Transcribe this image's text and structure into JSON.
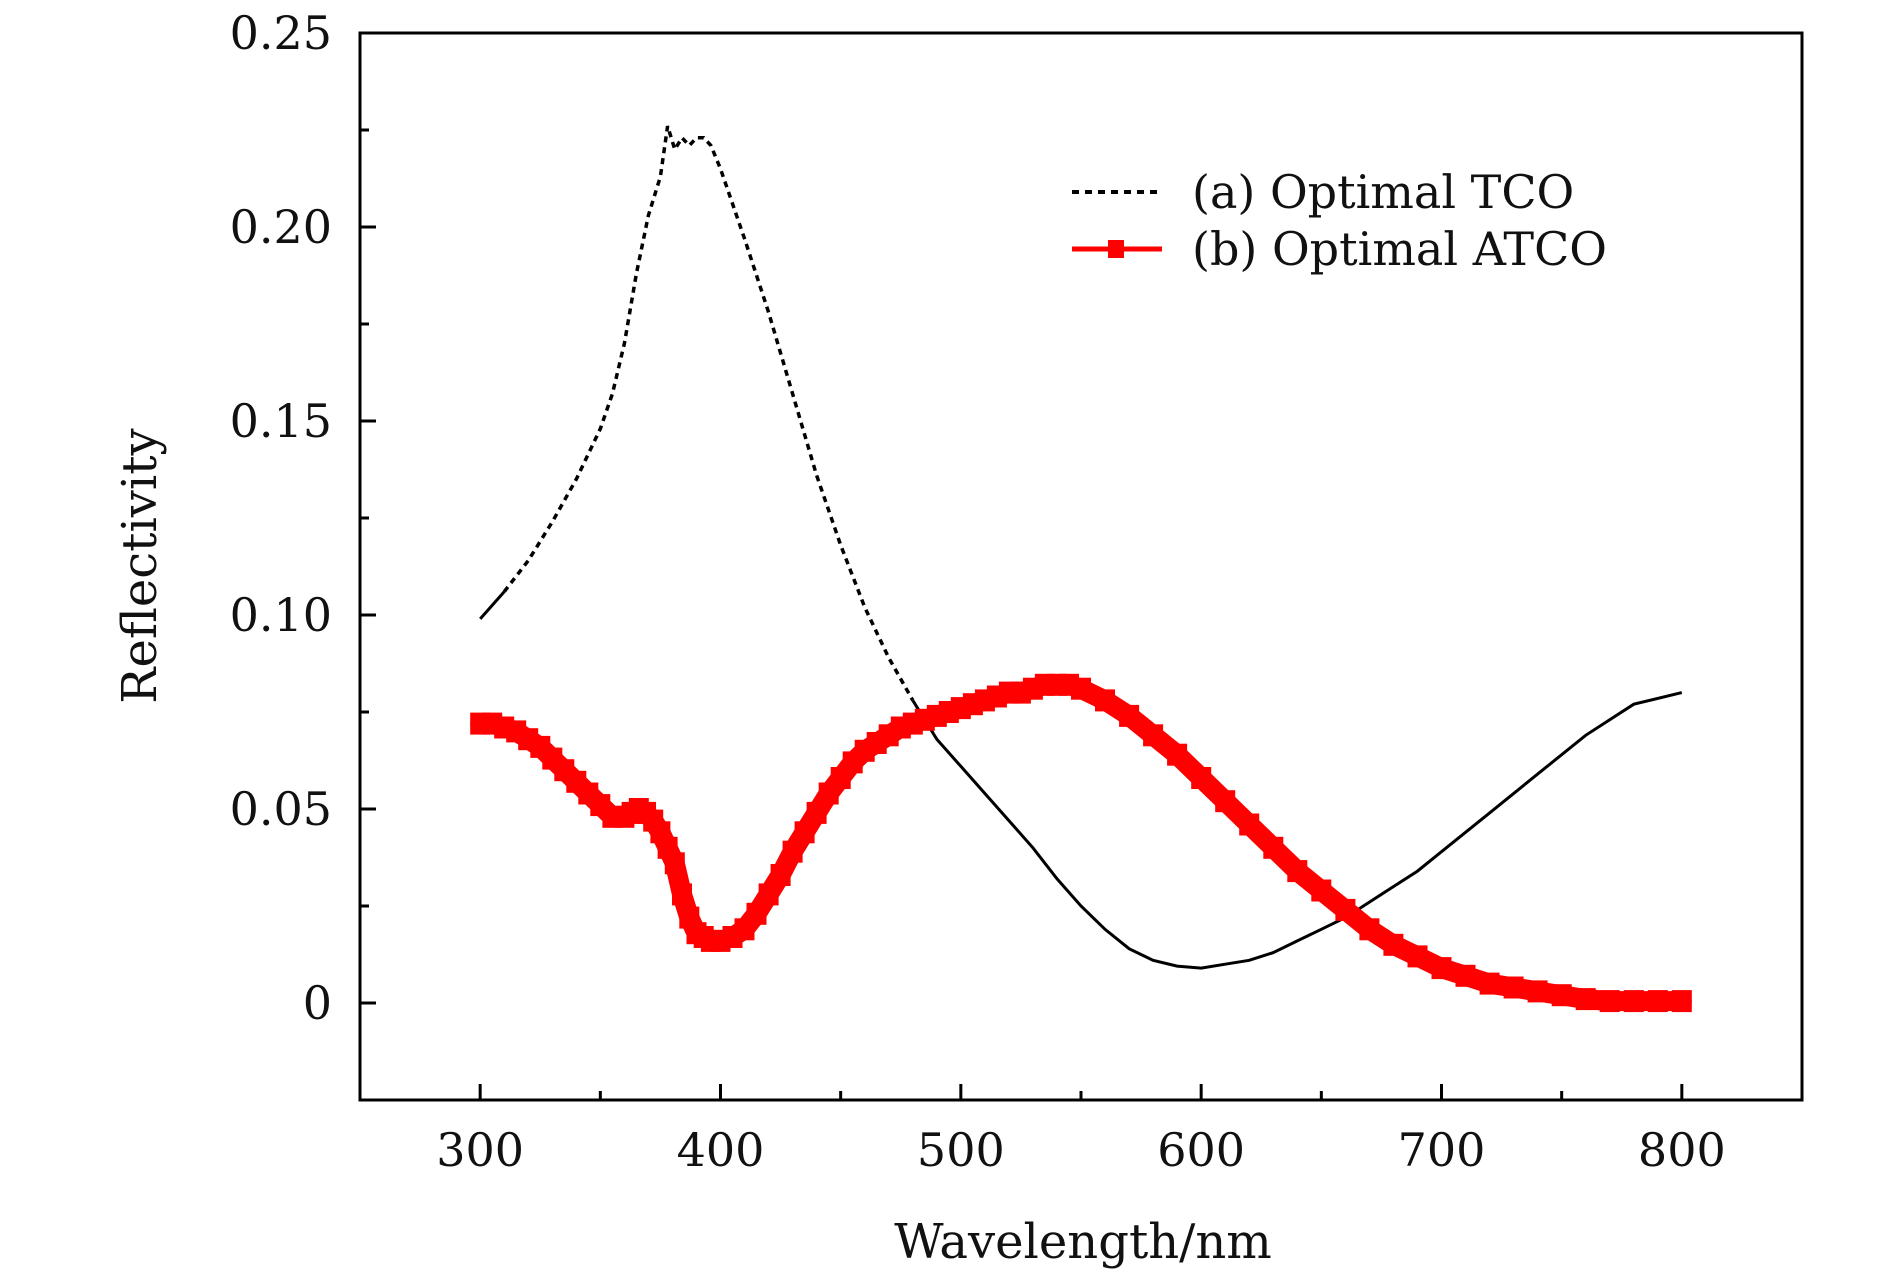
{
  "chart_data": {
    "type": "line",
    "title": "",
    "xlabel": "Wavelength/nm",
    "ylabel": "Reflectivity",
    "xlim": [
      250,
      850
    ],
    "ylim": [
      -0.025,
      0.25
    ],
    "xticks": [
      300,
      400,
      500,
      600,
      700,
      800
    ],
    "xtick_labels": [
      "300",
      "400",
      "500",
      "600",
      "700",
      "800"
    ],
    "yticks": [
      0,
      0.05,
      0.1,
      0.15,
      0.2,
      0.25
    ],
    "ytick_labels": [
      "0",
      "0.05",
      "0.10",
      "0.15",
      "0.20",
      "0.25"
    ],
    "legend_position": "top-right",
    "series": [
      {
        "name": "(a) Optimal TCO",
        "color": "#000000",
        "style": "dotted-then-solid",
        "x": [
          300,
          310,
          320,
          330,
          340,
          350,
          355,
          360,
          365,
          370,
          375,
          378,
          381,
          384,
          387,
          390,
          393,
          396,
          400,
          410,
          420,
          430,
          440,
          450,
          460,
          470,
          480,
          490,
          500,
          510,
          520,
          530,
          540,
          550,
          560,
          570,
          580,
          590,
          600,
          610,
          620,
          630,
          640,
          650,
          660,
          670,
          680,
          690,
          700,
          720,
          740,
          760,
          780,
          800
        ],
        "y": [
          0.099,
          0.106,
          0.114,
          0.124,
          0.135,
          0.148,
          0.157,
          0.17,
          0.188,
          0.203,
          0.213,
          0.226,
          0.22,
          0.223,
          0.221,
          0.223,
          0.223,
          0.221,
          0.215,
          0.197,
          0.178,
          0.157,
          0.136,
          0.118,
          0.102,
          0.089,
          0.078,
          0.068,
          0.061,
          0.054,
          0.047,
          0.04,
          0.032,
          0.025,
          0.019,
          0.014,
          0.011,
          0.0095,
          0.009,
          0.01,
          0.011,
          0.013,
          0.016,
          0.019,
          0.022,
          0.026,
          0.03,
          0.034,
          0.039,
          0.049,
          0.059,
          0.069,
          0.077,
          0.08
        ]
      },
      {
        "name": "(b) Optimal ATCO",
        "color": "#ff0000",
        "style": "thick-markers",
        "x": [
          300,
          305,
          310,
          315,
          320,
          325,
          330,
          335,
          340,
          345,
          350,
          355,
          360,
          363,
          366,
          369,
          372,
          375,
          378,
          381,
          384,
          387,
          390,
          393,
          396,
          400,
          405,
          410,
          415,
          420,
          425,
          430,
          435,
          440,
          445,
          450,
          455,
          460,
          465,
          470,
          475,
          480,
          485,
          490,
          495,
          500,
          505,
          510,
          515,
          520,
          525,
          530,
          535,
          540,
          545,
          550,
          560,
          570,
          580,
          590,
          600,
          610,
          620,
          630,
          640,
          650,
          660,
          670,
          680,
          690,
          700,
          710,
          720,
          730,
          740,
          750,
          760,
          770,
          780,
          790,
          800
        ],
        "y": [
          0.072,
          0.072,
          0.071,
          0.07,
          0.068,
          0.066,
          0.063,
          0.06,
          0.057,
          0.054,
          0.051,
          0.048,
          0.048,
          0.049,
          0.05,
          0.049,
          0.047,
          0.044,
          0.04,
          0.036,
          0.028,
          0.022,
          0.018,
          0.017,
          0.016,
          0.016,
          0.017,
          0.019,
          0.023,
          0.028,
          0.033,
          0.039,
          0.044,
          0.049,
          0.054,
          0.058,
          0.062,
          0.065,
          0.067,
          0.069,
          0.071,
          0.072,
          0.073,
          0.074,
          0.075,
          0.076,
          0.077,
          0.078,
          0.079,
          0.08,
          0.08,
          0.081,
          0.082,
          0.082,
          0.082,
          0.081,
          0.078,
          0.074,
          0.069,
          0.064,
          0.058,
          0.052,
          0.046,
          0.04,
          0.034,
          0.029,
          0.024,
          0.019,
          0.015,
          0.012,
          0.009,
          0.007,
          0.005,
          0.004,
          0.003,
          0.002,
          0.001,
          0.0005,
          0.0005,
          0.0005,
          0.0005
        ]
      }
    ]
  }
}
